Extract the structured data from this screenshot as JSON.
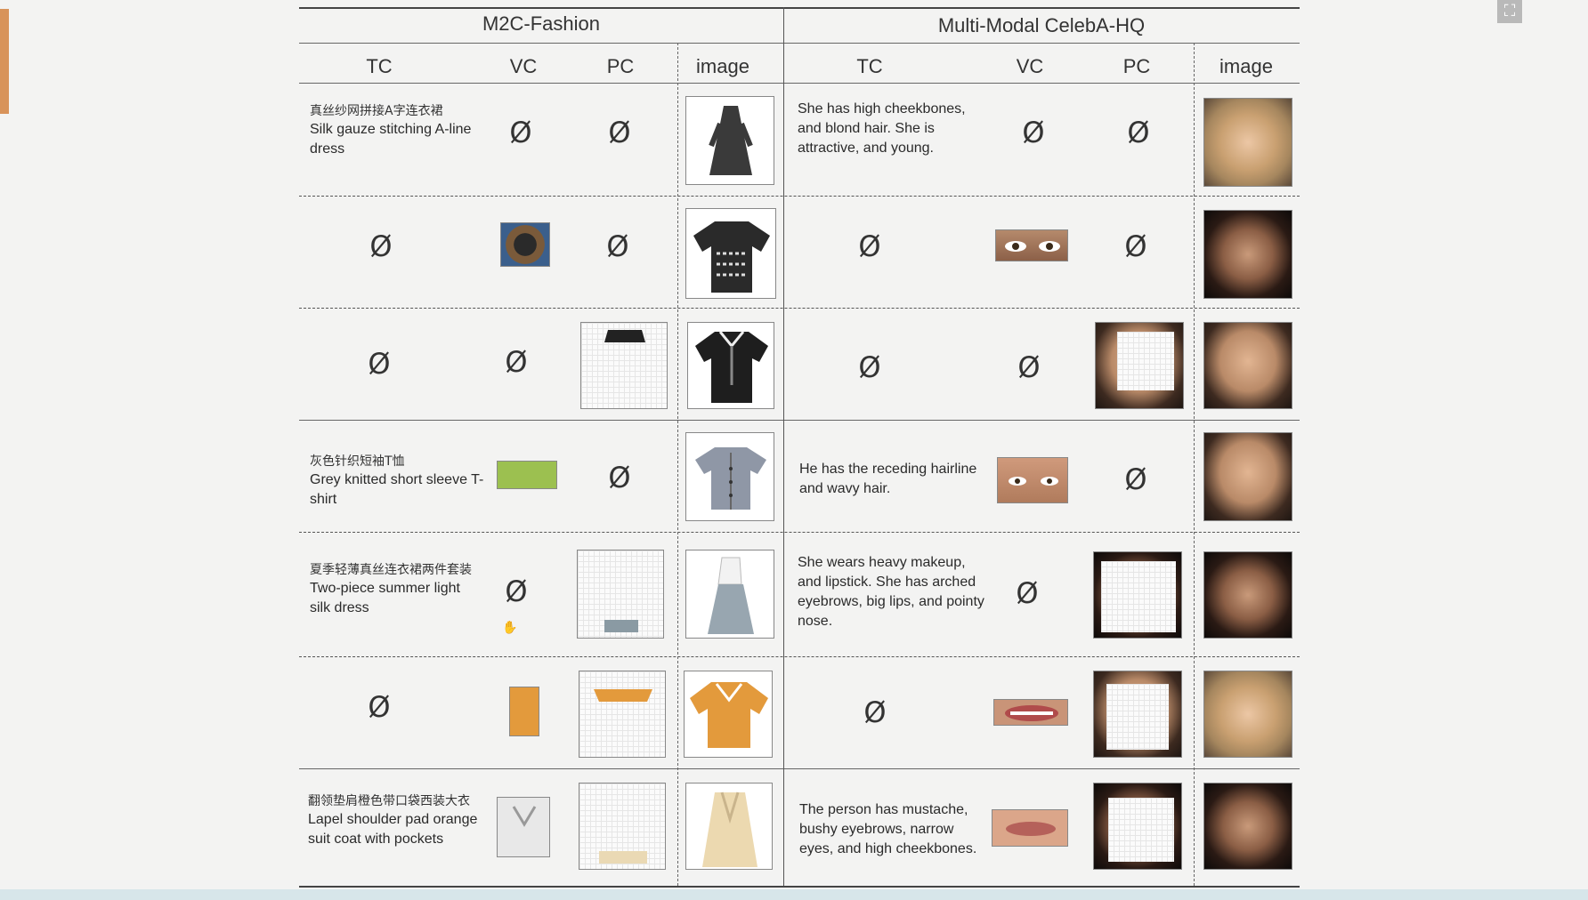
{
  "headers": {
    "left_group": "M2C-Fashion",
    "right_group": "Multi-Modal CelebA-HQ",
    "left_cols": [
      "TC",
      "VC",
      "PC",
      "image"
    ],
    "right_cols": [
      "TC",
      "VC",
      "PC",
      "image"
    ]
  },
  "empty_symbol": "Ø",
  "fashion_rows": [
    {
      "tc_zh": "真丝纱网拼接A字连衣裙",
      "tc_en": "Silk gauze stitching A-line dress"
    },
    {
      "tc_zh": "",
      "tc_en": ""
    },
    {
      "tc_zh": "",
      "tc_en": ""
    },
    {
      "tc_zh": "灰色针织短袖T恤",
      "tc_en": "Grey knitted short sleeve T-shirt"
    },
    {
      "tc_zh": "夏季轻薄真丝连衣裙两件套装",
      "tc_en": "Two-piece summer light silk dress"
    },
    {
      "tc_zh": "",
      "tc_en": ""
    },
    {
      "tc_zh": "翻领垫肩橙色带口袋西装大衣",
      "tc_en": "Lapel shoulder pad orange suit coat with pockets"
    }
  ],
  "celeba_rows": [
    {
      "tc": "She has high cheekbones, and blond hair. She is attractive, and young."
    },
    {
      "tc": ""
    },
    {
      "tc": ""
    },
    {
      "tc": "He has the receding hairline and wavy hair."
    },
    {
      "tc": "She wears heavy makeup, and lipstick. She has arched eyebrows, big lips, and pointy nose."
    },
    {
      "tc": ""
    },
    {
      "tc": "The person has mustache, bushy eyebrows, narrow eyes, and high cheekbones."
    }
  ],
  "icons": {
    "fullscreen": "exit-fullscreen-icon",
    "cursor": "hand-cursor-icon"
  },
  "colors": {
    "accent": "#d8935a",
    "orange_garment": "#e39a3c",
    "green_garment": "#9cc050"
  }
}
